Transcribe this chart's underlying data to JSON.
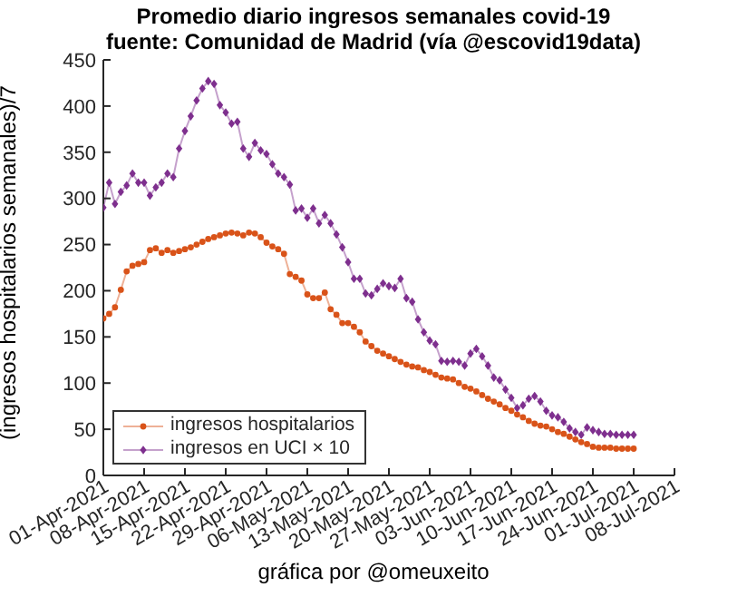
{
  "chart_data": {
    "type": "line",
    "title": "Promedio diario ingresos semanales covid-19",
    "subtitle": "fuente: Comunidad de Madrid (vía @escovid19data)",
    "ylabel": "(ingresos hospitalarios semanales)/7",
    "annotations": [
      "gráfica por @omeuxeito"
    ],
    "x": [
      "2021-04-01",
      "2021-04-02",
      "2021-04-03",
      "2021-04-04",
      "2021-04-05",
      "2021-04-06",
      "2021-04-07",
      "2021-04-08",
      "2021-04-09",
      "2021-04-10",
      "2021-04-11",
      "2021-04-12",
      "2021-04-13",
      "2021-04-14",
      "2021-04-15",
      "2021-04-16",
      "2021-04-17",
      "2021-04-18",
      "2021-04-19",
      "2021-04-20",
      "2021-04-21",
      "2021-04-22",
      "2021-04-23",
      "2021-04-24",
      "2021-04-25",
      "2021-04-26",
      "2021-04-27",
      "2021-04-28",
      "2021-04-29",
      "2021-04-30",
      "2021-05-01",
      "2021-05-02",
      "2021-05-03",
      "2021-05-04",
      "2021-05-05",
      "2021-05-06",
      "2021-05-07",
      "2021-05-08",
      "2021-05-09",
      "2021-05-10",
      "2021-05-11",
      "2021-05-12",
      "2021-05-13",
      "2021-05-14",
      "2021-05-15",
      "2021-05-16",
      "2021-05-17",
      "2021-05-18",
      "2021-05-19",
      "2021-05-20",
      "2021-05-21",
      "2021-05-22",
      "2021-05-23",
      "2021-05-24",
      "2021-05-25",
      "2021-05-26",
      "2021-05-27",
      "2021-05-28",
      "2021-05-29",
      "2021-05-30",
      "2021-05-31",
      "2021-06-01",
      "2021-06-02",
      "2021-06-03",
      "2021-06-04",
      "2021-06-05",
      "2021-06-06",
      "2021-06-07",
      "2021-06-08",
      "2021-06-09",
      "2021-06-10",
      "2021-06-11",
      "2021-06-12",
      "2021-06-13",
      "2021-06-14",
      "2021-06-15",
      "2021-06-16",
      "2021-06-17",
      "2021-06-18",
      "2021-06-19",
      "2021-06-20",
      "2021-06-21",
      "2021-06-22",
      "2021-06-23",
      "2021-06-24",
      "2021-06-25",
      "2021-06-26",
      "2021-06-27",
      "2021-06-28",
      "2021-06-29",
      "2021-06-30",
      "2021-07-01"
    ],
    "series": [
      {
        "name": "ingresos hospitalarios",
        "color": "#d95319",
        "marker": "circle",
        "values": [
          170,
          175,
          182,
          201,
          221,
          227,
          229,
          231,
          244,
          246,
          241,
          244,
          241,
          243,
          245,
          247,
          250,
          253,
          256,
          258,
          260,
          262,
          263,
          262,
          260,
          263,
          262,
          258,
          252,
          248,
          245,
          240,
          218,
          215,
          211,
          196,
          192,
          192,
          198,
          180,
          174,
          165,
          165,
          161,
          155,
          145,
          140,
          135,
          132,
          129,
          126,
          123,
          120,
          118,
          117,
          114,
          112,
          109,
          106,
          105,
          104,
          100,
          96,
          94,
          91,
          87,
          83,
          80,
          77,
          73,
          70,
          66,
          63,
          59,
          56,
          54,
          53,
          50,
          47,
          45,
          42,
          39,
          36,
          34,
          31,
          30,
          30,
          30,
          29,
          29,
          29,
          29
        ]
      },
      {
        "name": "ingresos en UCI × 10",
        "color": "#7e2f8e",
        "marker": "diamond",
        "values": [
          290,
          317,
          294,
          307,
          314,
          327,
          317,
          317,
          303,
          312,
          317,
          327,
          323,
          354,
          373,
          389,
          406,
          419,
          427,
          424,
          401,
          393,
          381,
          383,
          354,
          345,
          360,
          352,
          348,
          337,
          327,
          323,
          315,
          287,
          289,
          279,
          289,
          273,
          282,
          273,
          261,
          247,
          231,
          213,
          213,
          197,
          195,
          202,
          208,
          205,
          203,
          213,
          192,
          188,
          169,
          155,
          146,
          142,
          124,
          123,
          124,
          123,
          119,
          132,
          137,
          129,
          119,
          106,
          103,
          93,
          84,
          73,
          76,
          83,
          86,
          80,
          70,
          65,
          63,
          58,
          51,
          47,
          44,
          52,
          49,
          47,
          45,
          45,
          44,
          44,
          44,
          44
        ]
      }
    ],
    "xlim": [
      "2021-04-01",
      "2021-07-08"
    ],
    "xticks": [
      {
        "value": "2021-04-01",
        "label": "01-Apr-2021"
      },
      {
        "value": "2021-04-08",
        "label": "08-Apr-2021"
      },
      {
        "value": "2021-04-15",
        "label": "15-Apr-2021"
      },
      {
        "value": "2021-04-22",
        "label": "22-Apr-2021"
      },
      {
        "value": "2021-04-29",
        "label": "29-Apr-2021"
      },
      {
        "value": "2021-05-06",
        "label": "06-May-2021"
      },
      {
        "value": "2021-05-13",
        "label": "13-May-2021"
      },
      {
        "value": "2021-05-20",
        "label": "20-May-2021"
      },
      {
        "value": "2021-05-27",
        "label": "27-May-2021"
      },
      {
        "value": "2021-06-03",
        "label": "03-Jun-2021"
      },
      {
        "value": "2021-06-10",
        "label": "10-Jun-2021"
      },
      {
        "value": "2021-06-17",
        "label": "17-Jun-2021"
      },
      {
        "value": "2021-06-24",
        "label": "24-Jun-2021"
      },
      {
        "value": "2021-07-01",
        "label": "01-Jul-2021"
      },
      {
        "value": "2021-07-08",
        "label": "08-Jul-2021"
      }
    ],
    "ylim": [
      0,
      450
    ],
    "yticks": [
      0,
      50,
      100,
      150,
      200,
      250,
      300,
      350,
      400,
      450
    ],
    "legend": "bottom left",
    "line_style": "solid"
  }
}
